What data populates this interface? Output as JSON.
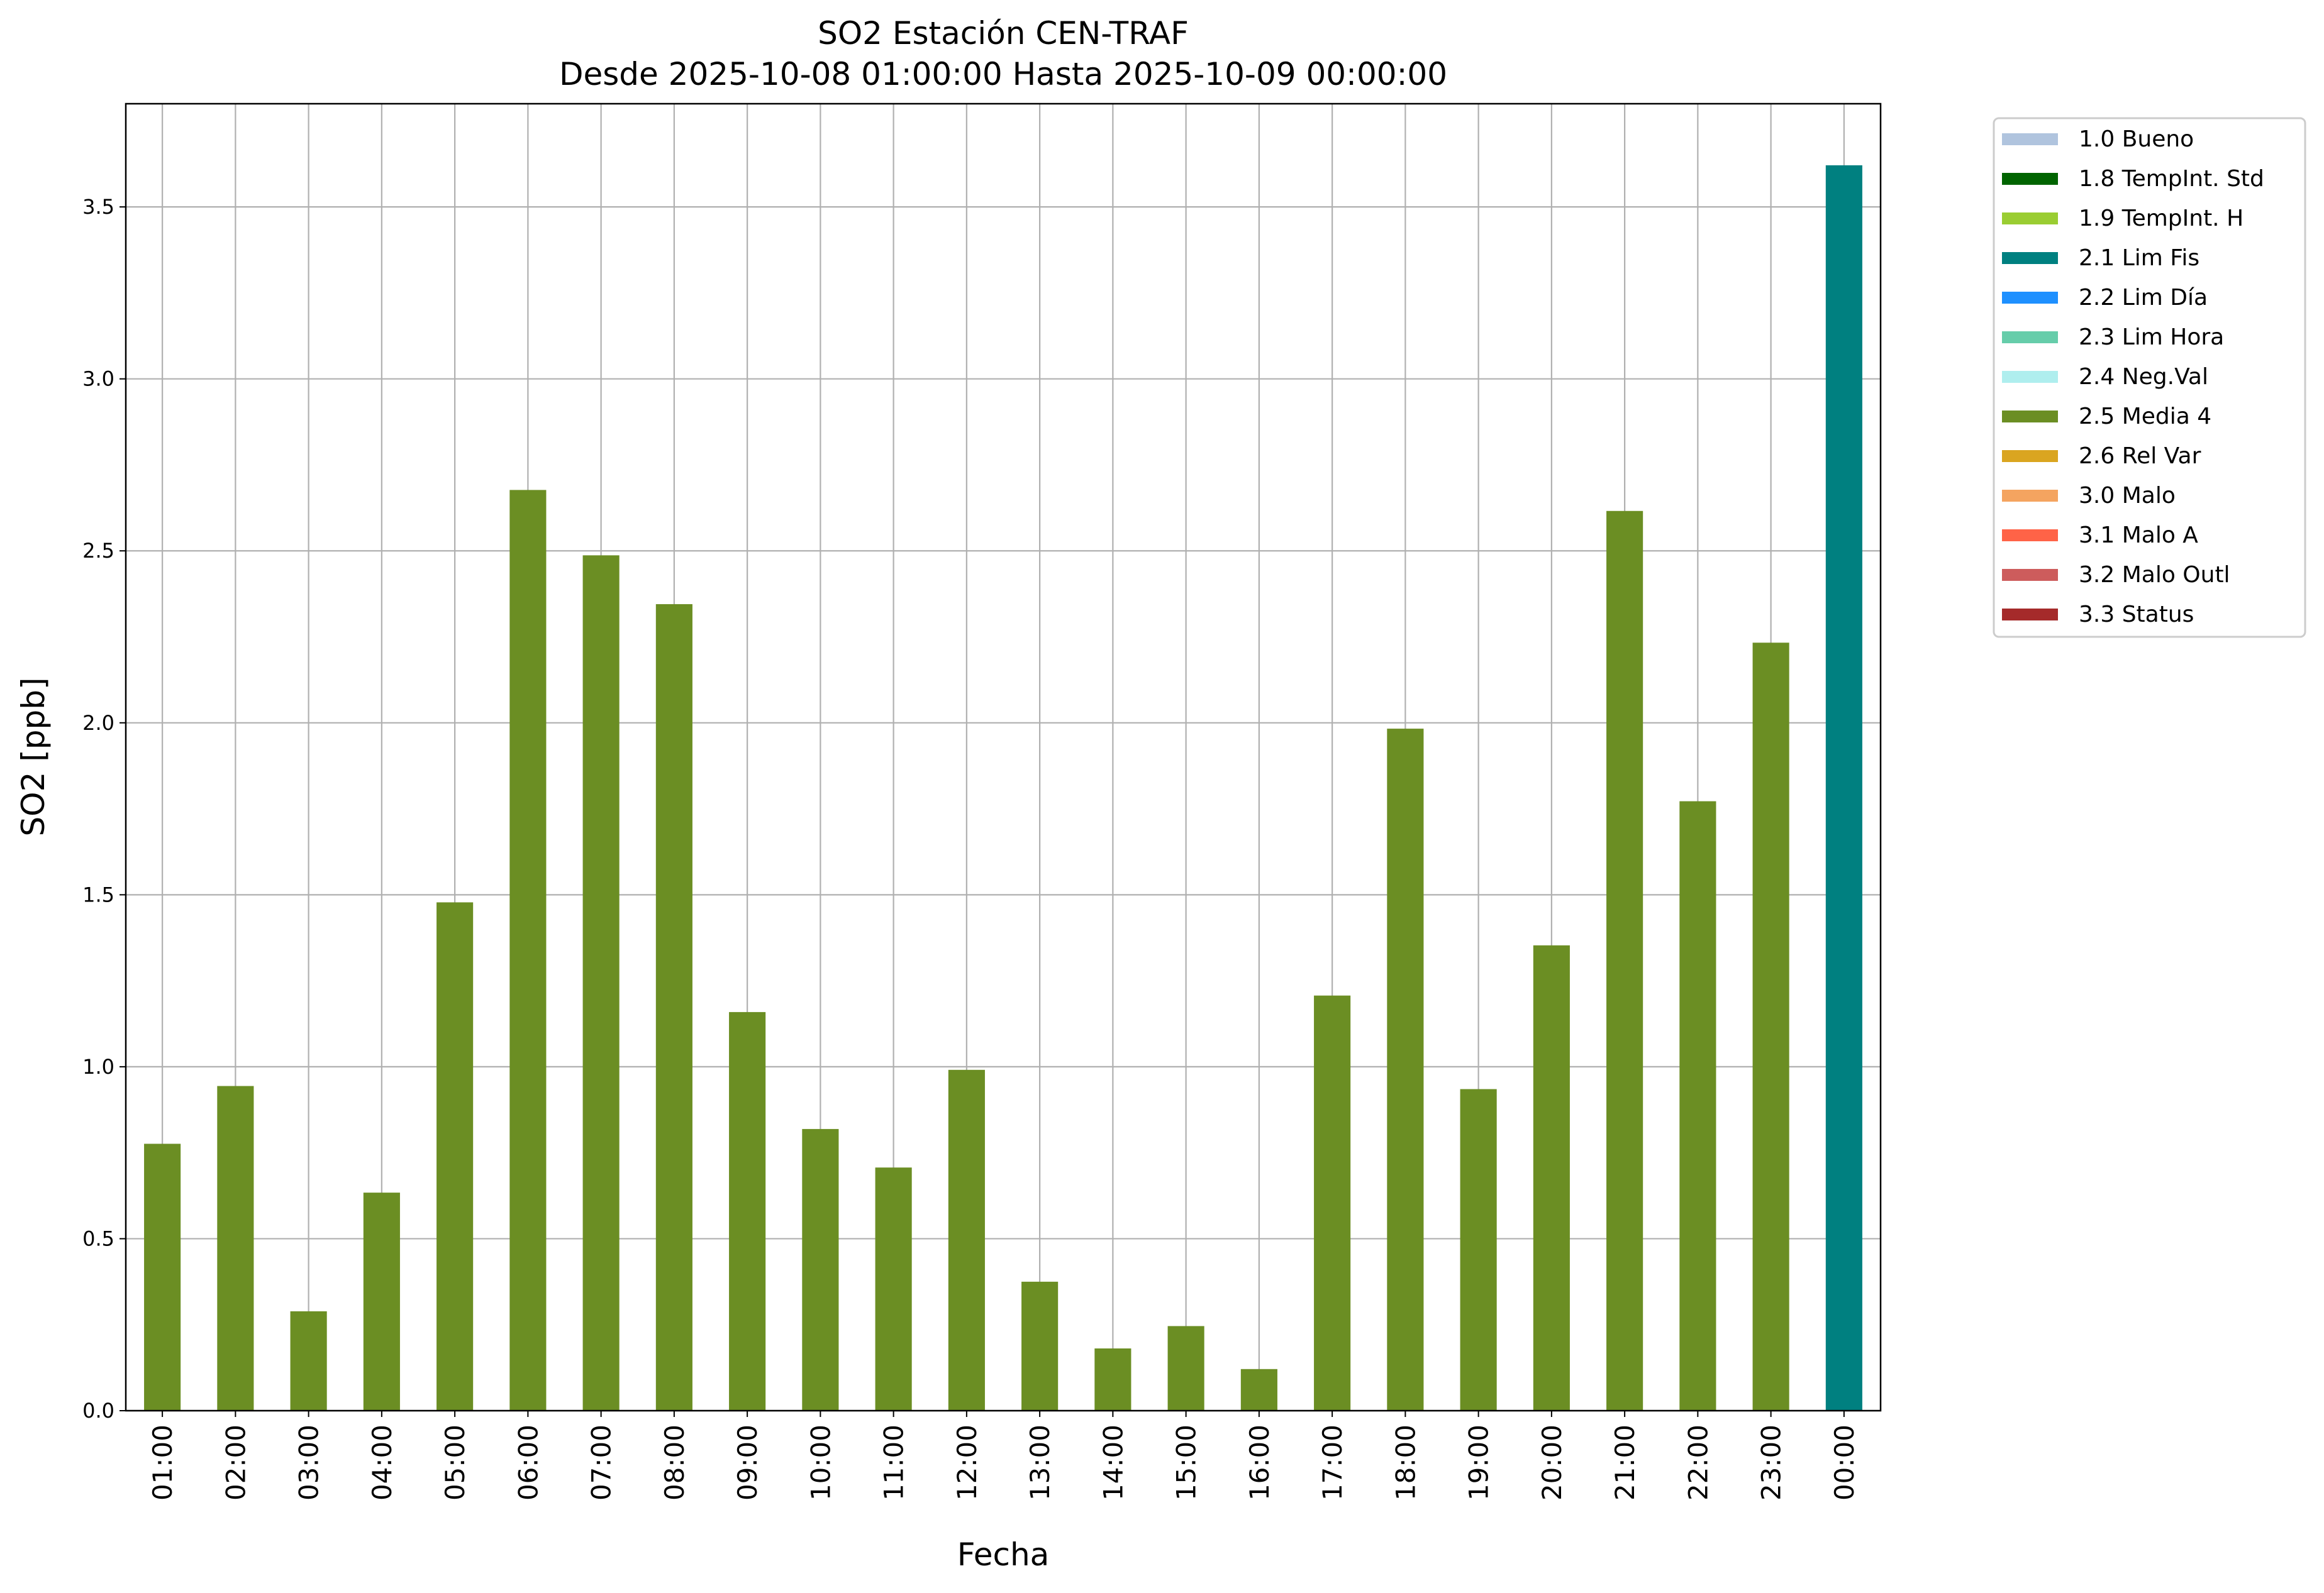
{
  "chart_data": {
    "type": "bar",
    "title": "SO2 Estación CEN-TRAF",
    "subtitle": "Desde 2025-10-08 01:00:00 Hasta 2025-10-09 00:00:00",
    "xlabel": "Fecha",
    "ylabel": "SO2 [ppb]",
    "ylim": [
      0,
      3.8
    ],
    "yticks": [
      0.0,
      0.5,
      1.0,
      1.5,
      2.0,
      2.5,
      3.0,
      3.5
    ],
    "ytick_labels": [
      "0.0",
      "0.5",
      "1.0",
      "1.5",
      "2.0",
      "2.5",
      "3.0",
      "3.5"
    ],
    "grid": true,
    "legend_placement": "outside-top-right",
    "categories": [
      "01:00",
      "02:00",
      "03:00",
      "04:00",
      "05:00",
      "06:00",
      "07:00",
      "08:00",
      "09:00",
      "10:00",
      "11:00",
      "12:00",
      "13:00",
      "14:00",
      "15:00",
      "16:00",
      "17:00",
      "18:00",
      "19:00",
      "20:00",
      "21:00",
      "22:00",
      "23:00",
      "00:00"
    ],
    "values": [
      0.776,
      0.944,
      0.289,
      0.634,
      1.478,
      2.677,
      2.487,
      2.345,
      1.159,
      0.819,
      0.707,
      0.991,
      0.375,
      0.181,
      0.246,
      0.121,
      1.207,
      1.983,
      0.935,
      1.353,
      2.616,
      1.772,
      2.233,
      3.621
    ],
    "flags": [
      "2.5 Media 4",
      "2.5 Media 4",
      "2.5 Media 4",
      "2.5 Media 4",
      "2.5 Media 4",
      "2.5 Media 4",
      "2.5 Media 4",
      "2.5 Media 4",
      "2.5 Media 4",
      "2.5 Media 4",
      "2.5 Media 4",
      "2.5 Media 4",
      "2.5 Media 4",
      "2.5 Media 4",
      "2.5 Media 4",
      "2.5 Media 4",
      "2.5 Media 4",
      "2.5 Media 4",
      "2.5 Media 4",
      "2.5 Media 4",
      "2.5 Media 4",
      "2.5 Media 4",
      "2.5 Media 4",
      "2.1 Lim Fis"
    ],
    "legend": [
      {
        "label": "1.0 Bueno",
        "color": "#B0C4DE"
      },
      {
        "label": "1.8 TempInt. Std",
        "color": "#006400"
      },
      {
        "label": "1.9 TempInt. H",
        "color": "#9ACD32"
      },
      {
        "label": "2.1 Lim Fis",
        "color": "#008080"
      },
      {
        "label": "2.2 Lim Día",
        "color": "#1E90FF"
      },
      {
        "label": "2.3 Lim Hora",
        "color": "#66CDAA"
      },
      {
        "label": "2.4 Neg.Val",
        "color": "#AFEEEE"
      },
      {
        "label": "2.5 Media 4",
        "color": "#6B8E23"
      },
      {
        "label": "2.6 Rel Var",
        "color": "#DAA520"
      },
      {
        "label": "3.0 Malo",
        "color": "#F4A460"
      },
      {
        "label": "3.1 Malo A",
        "color": "#FF6347"
      },
      {
        "label": "3.2 Malo Outl",
        "color": "#CD5C5C"
      },
      {
        "label": "3.3 Status",
        "color": "#A52A2A"
      }
    ]
  }
}
